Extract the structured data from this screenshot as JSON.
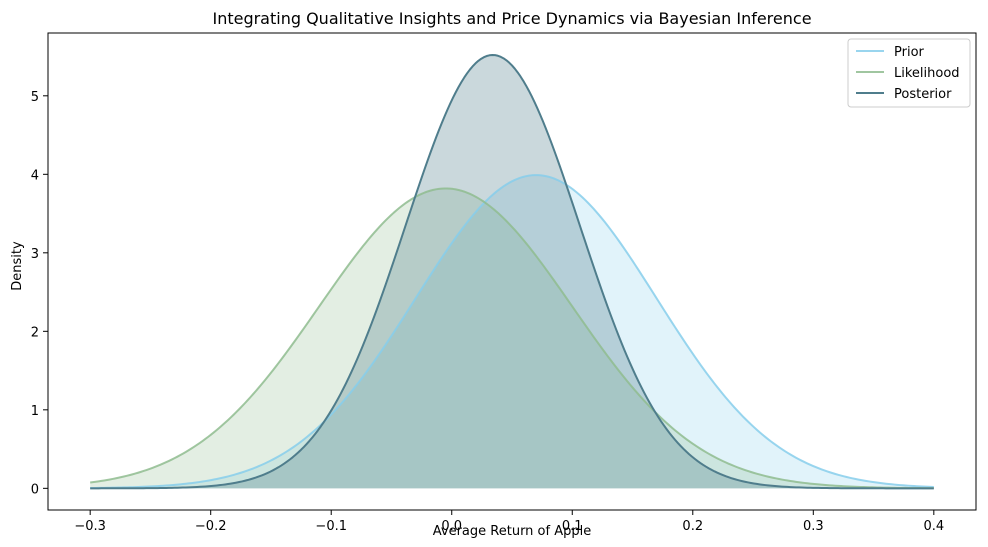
{
  "chart_data": {
    "type": "area",
    "title": "Integrating Qualitative Insights and Price Dynamics via Bayesian Inference",
    "xlabel": "Average Return of Apple",
    "ylabel": "Density",
    "xlim": [
      -0.335,
      0.435
    ],
    "ylim": [
      -0.276,
      5.8
    ],
    "x_range": [
      -0.3,
      0.4
    ],
    "xticks": [
      -0.3,
      -0.2,
      -0.1,
      0.0,
      0.1,
      0.2,
      0.3,
      0.4
    ],
    "xtick_labels": [
      "−0.3",
      "−0.2",
      "−0.1",
      "0.0",
      "0.1",
      "0.2",
      "0.3",
      "0.4"
    ],
    "yticks": [
      0,
      1,
      2,
      3,
      4,
      5
    ],
    "ytick_labels": [
      "0",
      "1",
      "2",
      "3",
      "4",
      "5"
    ],
    "grid": false,
    "legend_position": "top-right",
    "series": [
      {
        "name": "Prior",
        "distribution": "normal",
        "mean": 0.07,
        "std": 0.1,
        "peak_density": 3.99,
        "color": "#87ceeb",
        "line_opacity": 0.85,
        "fill_opacity": 0.25
      },
      {
        "name": "Likelihood",
        "distribution": "normal",
        "mean": -0.005,
        "std": 0.105,
        "peak_density": 3.82,
        "color": "#8fbc8f",
        "line_opacity": 0.85,
        "fill_opacity": 0.25
      },
      {
        "name": "Posterior",
        "distribution": "normal",
        "mean": 0.034,
        "std": 0.0723,
        "peak_density": 5.52,
        "color": "#4f7d8c",
        "line_opacity": 1,
        "fill_opacity": 0.3
      }
    ]
  }
}
